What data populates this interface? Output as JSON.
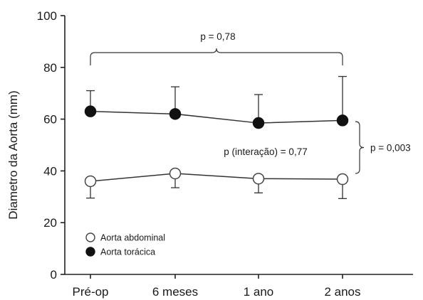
{
  "chart_data": {
    "type": "line",
    "categories": [
      "Pré-op",
      "6 meses",
      "1 ano",
      "2 anos"
    ],
    "ylabel": "Diametro da Aorta (mm)",
    "ylim": [
      0,
      100
    ],
    "yticks": [
      0,
      20,
      40,
      60,
      80,
      100
    ],
    "grid": false,
    "legend_placement": "bottom-left",
    "series": [
      {
        "name": "Aorta abdominal",
        "values": [
          36,
          39,
          37,
          36.8
        ],
        "error_low": [
          6.5,
          5.5,
          5.5,
          7.5
        ],
        "marker": "open-circle",
        "color": "#444444"
      },
      {
        "name": "Aorta torácica",
        "values": [
          63,
          62,
          58.5,
          59.5
        ],
        "error_high": [
          8,
          10.5,
          11,
          17
        ],
        "marker": "filled-circle",
        "color": "#111111"
      }
    ],
    "annotations": {
      "top_bracket_label": "p = 0,78",
      "interaction_label": "p (interação) = 0,77",
      "side_bracket_label": "p = 0,003"
    }
  }
}
